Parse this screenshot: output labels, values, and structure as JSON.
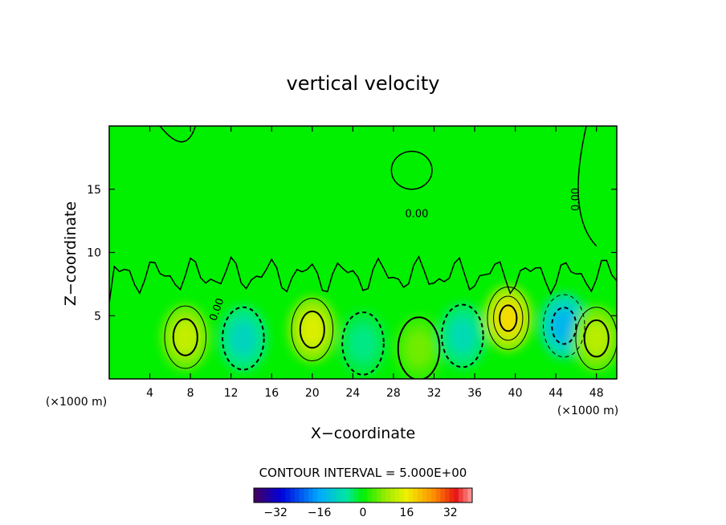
{
  "chart_data": {
    "type": "heatmap",
    "title": "vertical velocity",
    "xlabel": "X−coordinate",
    "ylabel": "Z−coordinate",
    "x_unit_label": "(×1000 m)",
    "x_unit_label_right": "(×1000 m)",
    "xlim": [
      0,
      50
    ],
    "ylim": [
      0,
      20
    ],
    "x_ticks": [
      4,
      8,
      12,
      16,
      20,
      24,
      28,
      32,
      36,
      40,
      44,
      48
    ],
    "y_ticks": [
      5,
      10,
      15
    ],
    "contour_interval_text": "CONTOUR INTERVAL = 5.000E+00",
    "contour_labels": [
      "0.00",
      "0.00",
      "0.00"
    ],
    "colorbar": {
      "range": [
        -40,
        40
      ],
      "ticks": [
        "−32",
        "−16",
        "0",
        "16",
        "32"
      ],
      "tick_values": [
        -32,
        -16,
        0,
        16,
        32
      ]
    },
    "cells": [
      {
        "x": 7.5,
        "z": 3.3,
        "w": 12
      },
      {
        "x": 13.2,
        "z": 3.2,
        "w": -9
      },
      {
        "x": 20.0,
        "z": 3.9,
        "w": 14
      },
      {
        "x": 25.0,
        "z": 2.8,
        "w": -5
      },
      {
        "x": 30.5,
        "z": 2.4,
        "w": 6
      },
      {
        "x": 34.8,
        "z": 3.4,
        "w": -8
      },
      {
        "x": 39.3,
        "z": 4.8,
        "w": 18
      },
      {
        "x": 44.8,
        "z": 4.2,
        "w": -14
      },
      {
        "x": 48.0,
        "z": 3.2,
        "w": 11
      }
    ],
    "colors": {
      "background_field": "#00f000",
      "line": "#000000"
    }
  }
}
